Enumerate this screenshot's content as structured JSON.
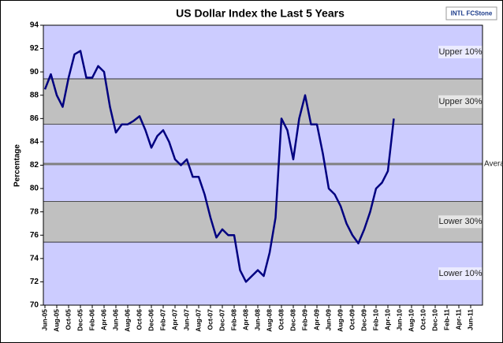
{
  "chart_data": {
    "type": "line",
    "title": "US Dollar Index the Last 5 Years",
    "y_label": "Percentage",
    "logo": "INTL FCStone",
    "categories": [
      "Jun-05",
      null,
      "Aug-05",
      null,
      "Oct-05",
      null,
      "Dec-05",
      null,
      "Feb-06",
      null,
      "Apr-06",
      null,
      "Jun-06",
      null,
      "Aug-06",
      null,
      "Oct-06",
      null,
      "Dec-06",
      null,
      "Feb-07",
      null,
      "Apr-07",
      null,
      "Jun-07",
      null,
      "Aug-07",
      null,
      "Oct-07",
      null,
      "Dec-07",
      null,
      "Feb-08",
      null,
      "Apr-08",
      null,
      "Jun-08",
      null,
      "Aug-08",
      null,
      "Oct-08",
      null,
      "Dec-08",
      null,
      "Feb-09",
      null,
      "Apr-09",
      null,
      "Jun-09",
      null,
      "Aug-09",
      null,
      "Oct-09",
      null,
      "Dec-09",
      null,
      "Feb-10",
      null,
      "Apr-10",
      null,
      "Jun-10",
      null,
      "Aug-10",
      null,
      "Oct-10",
      null,
      "Dec-10",
      null,
      "Feb-11",
      null,
      "Apr-11",
      null,
      "Jun-11"
    ],
    "series": [
      {
        "name": "US Dollar Index",
        "color": "#000080",
        "values": [
          88.5,
          89.8,
          88.0,
          87.0,
          89.5,
          91.5,
          91.8,
          89.5,
          89.5,
          90.5,
          90.0,
          87.0,
          84.8,
          85.5,
          85.5,
          85.8,
          86.2,
          85.0,
          83.5,
          84.5,
          85.0,
          84.0,
          82.5,
          82.0,
          82.5,
          81.0,
          81.0,
          79.5,
          77.5,
          75.8,
          76.5,
          76.0,
          76.0,
          73.0,
          72.0,
          72.5,
          73.0,
          72.5,
          74.5,
          77.5,
          86.0,
          85.0,
          82.5,
          86.0,
          88.0,
          85.5,
          85.5,
          83.0,
          80.0,
          79.5,
          78.5,
          77.0,
          76.0,
          75.3,
          76.5,
          78.0,
          80.0,
          80.5,
          81.5,
          86.0,
          null,
          null,
          null,
          null,
          null,
          null,
          null,
          null,
          null,
          null,
          null,
          null,
          null
        ]
      }
    ],
    "bands": [
      {
        "label": "Upper 10%",
        "from": 89.4,
        "to": 94,
        "color": "#ccccff"
      },
      {
        "label": "Upper 30%",
        "from": 85.5,
        "to": 89.4,
        "color": "#c0c0c0"
      },
      {
        "label": "Lower 30%",
        "from": 75.4,
        "to": 78.9,
        "color": "#c0c0c0"
      },
      {
        "label": "Lower 10%",
        "from": 70,
        "to": 75.4,
        "color": "#ccccff"
      }
    ],
    "middle_color": "#ccccff",
    "average": {
      "label": "Average",
      "value": 82.1,
      "color": "#808080"
    },
    "ylim": [
      70,
      94
    ],
    "yticks": [
      70,
      72,
      74,
      76,
      78,
      80,
      82,
      84,
      86,
      88,
      90,
      92,
      94
    ]
  }
}
